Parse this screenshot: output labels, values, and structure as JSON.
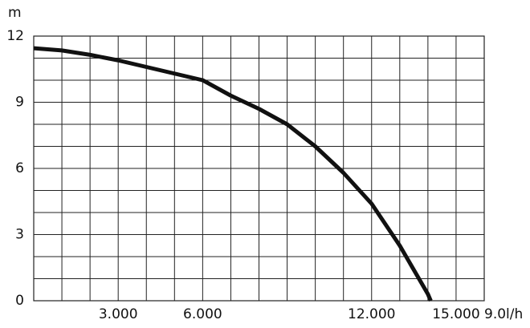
{
  "chart_data": {
    "type": "line",
    "y_label": "m",
    "x_label": "9.0l/h",
    "x": [
      0,
      1000,
      2000,
      3000,
      4000,
      5000,
      6000,
      7000,
      8000,
      9000,
      10000,
      11000,
      12000,
      13000,
      14000,
      14100
    ],
    "series": [
      {
        "color": "#111111",
        "values": [
          11.45,
          11.35,
          11.15,
          10.9,
          10.6,
          10.3,
          10.0,
          9.3,
          8.7,
          8.0,
          7.0,
          5.8,
          4.4,
          2.5,
          0.3,
          0
        ]
      }
    ],
    "xlim": [
      0,
      16000
    ],
    "ylim": [
      0,
      12
    ],
    "xticks": [
      {
        "value": 3000,
        "label": "3.000"
      },
      {
        "value": 6000,
        "label": "6.000"
      },
      {
        "value": 12000,
        "label": "12.000"
      },
      {
        "value": 15000,
        "label": "15.000"
      }
    ],
    "yticks": [
      0,
      3,
      6,
      9,
      12
    ],
    "xgrid": [
      1000,
      2000,
      3000,
      4000,
      5000,
      6000,
      7000,
      8000,
      9000,
      10000,
      11000,
      12000,
      13000,
      14000,
      15000
    ],
    "ygrid": [
      1,
      2,
      3,
      4,
      5,
      6,
      7,
      8,
      9,
      10,
      11
    ],
    "grid": true
  }
}
